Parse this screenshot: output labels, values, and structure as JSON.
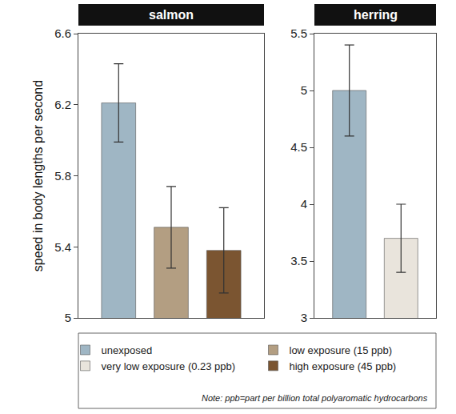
{
  "chart_data": [
    {
      "type": "bar",
      "title": "salmon",
      "ylabel": "speed in body lengths per second",
      "categories": [
        null
      ],
      "series": [
        {
          "name": "unexposed",
          "color": "#9fb6c4",
          "values": [
            6.21
          ],
          "error": [
            0.22
          ]
        },
        {
          "name": "low exposure (15 ppb)",
          "color": "#b39e82",
          "values": [
            5.51
          ],
          "error": [
            0.23
          ]
        },
        {
          "name": "high exposure (45 ppb)",
          "color": "#7b5531",
          "values": [
            5.38
          ],
          "error": [
            0.24
          ]
        }
      ],
      "ylim": [
        5,
        6.6
      ],
      "yticks": [
        5,
        5.4,
        5.8,
        6.2,
        6.6
      ],
      "grid": false,
      "legend": "bottom"
    },
    {
      "type": "bar",
      "title": "herring",
      "categories": [
        null
      ],
      "series": [
        {
          "name": "unexposed",
          "color": "#9fb6c4",
          "values": [
            5.0
          ],
          "error": [
            0.4
          ]
        },
        {
          "name": "very low exposure (0.23 ppb)",
          "color": "#e9e4dc",
          "values": [
            3.7
          ],
          "error": [
            0.3
          ]
        }
      ],
      "ylim": [
        3,
        5.5
      ],
      "yticks": [
        3,
        3.5,
        4,
        4.5,
        5,
        5.5
      ],
      "grid": false,
      "legend": "bottom"
    }
  ],
  "note": "Note: ppb=part per billion total polyaromatic hydrocarbons"
}
